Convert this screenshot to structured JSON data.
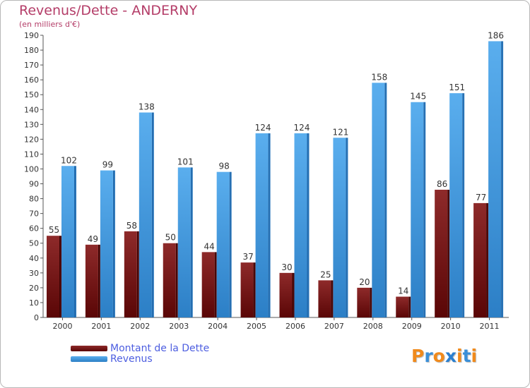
{
  "title": "Revenus/Dette - ANDERNY",
  "subtitle": "(en milliers d'€)",
  "colors": {
    "dette": "#7b1d1d",
    "revenus": "#4aa3e8",
    "title": "#b43d68",
    "legend_text": "#4d5ee0"
  },
  "legend": {
    "dette_label": "Montant de la Dette",
    "revenus_label": "Revenus"
  },
  "logo": {
    "text": "Proxiti",
    "letter_colors": [
      "#f08a1c",
      "#3a8fd8",
      "#f08a1c",
      "#2a7fd0",
      "#f08a1c",
      "#3a8fd8",
      "#f08a1c"
    ]
  },
  "chart_data": {
    "type": "bar",
    "categories": [
      "2000",
      "2001",
      "2002",
      "2003",
      "2004",
      "2005",
      "2006",
      "2007",
      "2008",
      "2009",
      "2010",
      "2011"
    ],
    "series": [
      {
        "name": "Montant de la Dette",
        "values": [
          55,
          49,
          58,
          50,
          44,
          37,
          30,
          25,
          20,
          14,
          86,
          77
        ]
      },
      {
        "name": "Revenus",
        "values": [
          102,
          99,
          138,
          101,
          98,
          124,
          124,
          121,
          158,
          145,
          151,
          186
        ]
      }
    ],
    "ylim": [
      0,
      190
    ],
    "yticks": [
      0,
      10,
      20,
      30,
      40,
      50,
      60,
      70,
      80,
      90,
      100,
      110,
      120,
      130,
      140,
      150,
      160,
      170,
      180,
      190
    ],
    "grid": false,
    "legend_position": "bottom-left"
  }
}
